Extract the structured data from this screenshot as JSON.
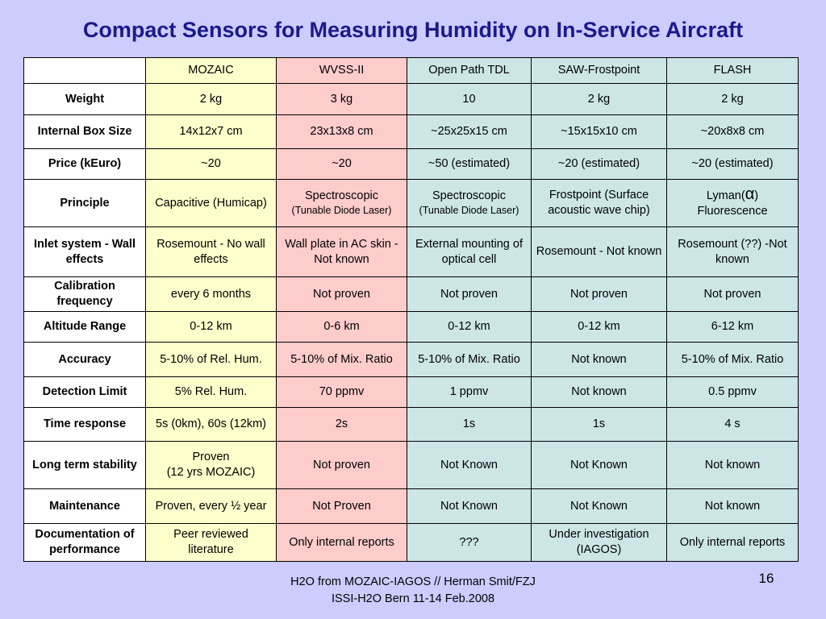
{
  "title": "Compact Sensors for Measuring Humidity on In-Service Aircraft",
  "columns": [
    "MOZAIC",
    "WVSS-II",
    "Open Path TDL",
    "SAW-Frostpoint",
    "FLASH"
  ],
  "rows": [
    {
      "header": "Weight",
      "cells": [
        "2 kg",
        "3 kg",
        "10",
        "2 kg",
        "2 kg"
      ]
    },
    {
      "header": "Internal Box Size",
      "cells": [
        "14x12x7 cm",
        "23x13x8 cm",
        "~25x25x15 cm",
        "~15x15x10 cm",
        "~20x8x8 cm"
      ]
    },
    {
      "header": "Price (kEuro)",
      "cells": [
        "~20",
        "~20",
        "~50 (estimated)",
        "~20 (estimated)",
        "~20 (estimated)"
      ]
    },
    {
      "header": "Principle",
      "cells": [
        "Capacitive (Humicap)",
        "Spectroscopic",
        "Spectroscopic",
        "Frostpoint (Surface acoustic wave chip)",
        "Lyman("
      ]
    },
    {
      "header": "Inlet system - Wall effects",
      "cells": [
        "Rosemount - No wall effects",
        "Wall plate in AC skin - Not known",
        "External mounting of optical cell",
        "Rosemount - Not known",
        "Rosemount (??) -Not known"
      ]
    },
    {
      "header": "Calibration frequency",
      "cells": [
        "every 6 months",
        "Not proven",
        "Not proven",
        "Not  proven",
        "Not proven"
      ]
    },
    {
      "header": "Altitude Range",
      "cells": [
        "0-12 km",
        "0-6 km",
        "0-12 km",
        "0-12 km",
        "6-12 km"
      ]
    },
    {
      "header": "Accuracy",
      "cells": [
        "5-10% of Rel. Hum.",
        "5-10% of Mix. Ratio",
        "5-10% of Mix. Ratio",
        "Not known",
        "5-10% of Mix. Ratio"
      ]
    },
    {
      "header": "Detection Limit",
      "cells": [
        "5% Rel. Hum.",
        "70 ppmv",
        "1 ppmv",
        "Not known",
        "0.5 ppmv"
      ]
    },
    {
      "header": "Time response",
      "cells": [
        "5s (0km), 60s (12km)",
        "2s",
        "1s",
        "1s",
        "4 s"
      ]
    },
    {
      "header": "Long term stability",
      "cells": [
        "Proven",
        "Not proven",
        "Not Known",
        "Not Known",
        "Not known"
      ]
    },
    {
      "header": "Maintenance",
      "cells": [
        "Proven, every ½ year",
        "Not Proven",
        "Not Known",
        "Not Known",
        "Not known"
      ]
    },
    {
      "header": "Documentation of performance",
      "cells": [
        "Peer reviewed literature",
        "Only internal reports",
        "???",
        "Under investigation (IAGOS)",
        "Only internal reports"
      ]
    }
  ],
  "extras": {
    "wvss_principle_note": "(Tunable Diode Laser)",
    "tdl_principle_note": "(Tunable Diode Laser)",
    "alpha_symbol": "α",
    "flash_principle_tail": ")",
    "flash_principle_line2": "Fluorescence",
    "mozaic_stability_line2": "(12 yrs MOZAIC)"
  },
  "footer": {
    "line1": "H2O from MOZAIC-IAGOS // Herman Smit/FZJ",
    "line2": "ISSI-H2O Bern 11-14 Feb.2008"
  },
  "page_number": "16",
  "colors": {
    "background": "#ccccff",
    "title": "#1a1a8c",
    "mozaic_column": "#ffffcc",
    "wvss_column": "#ffcccc",
    "other_columns": "#cce6e6"
  }
}
